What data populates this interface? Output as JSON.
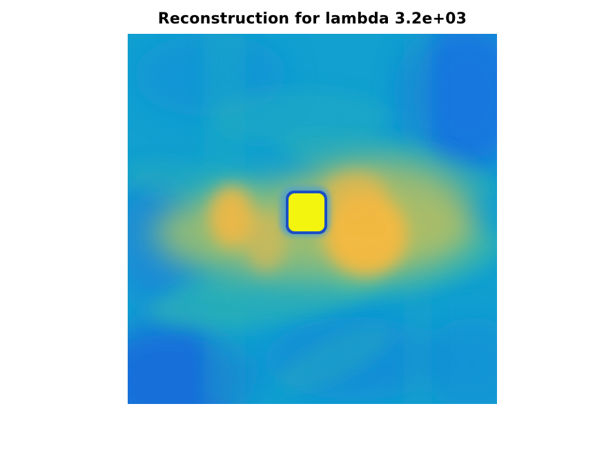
{
  "chart_data": {
    "type": "heatmap",
    "title": "Reconstruction for lambda 3.2e+03",
    "xlabel": "",
    "ylabel": "",
    "axes_visible": false,
    "grid": false,
    "colormap": "parula",
    "colors": {
      "background": "#1c9bd4",
      "low": "#1c6be0",
      "mid_low": "#06a4ca",
      "mid": "#3cbea6",
      "mid_high": "#b9bc61",
      "high": "#f5b93d",
      "peak": "#f3f50e",
      "ring": "#1561c7"
    },
    "features": [
      {
        "name": "peak",
        "center": [
          0.54,
          0.48
        ],
        "half_size": 0.05,
        "value": 1.0
      },
      {
        "name": "warm-band-right",
        "center": [
          0.65,
          0.52
        ],
        "value": 0.75
      },
      {
        "name": "warm-band-left",
        "center": [
          0.28,
          0.5
        ],
        "value": 0.68
      }
    ]
  }
}
